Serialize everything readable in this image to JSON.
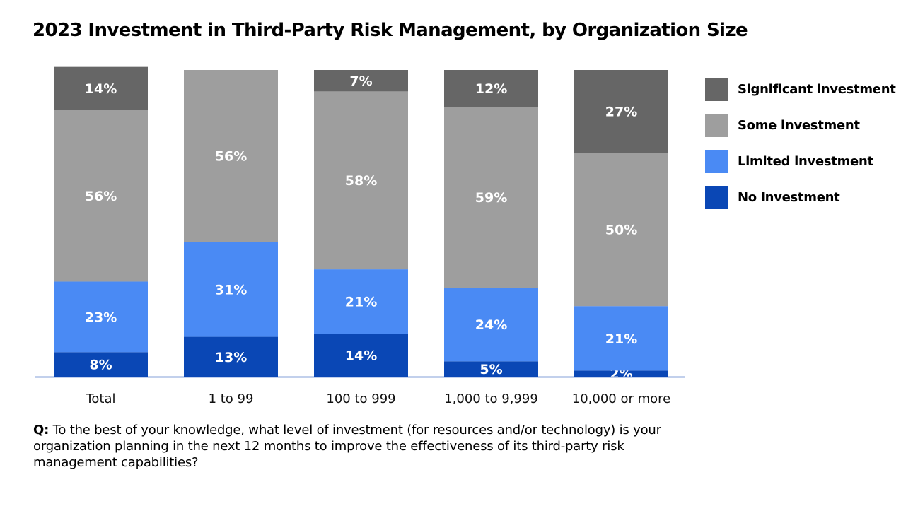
{
  "title": "2023 Investment in Third-Party Risk Management, by Organization Size",
  "question": {
    "prefix": "Q:",
    "text": "To the best of your knowledge, what level of investment (for resources and/or technology) is your organization planning in the next 12 months to improve the effectiveness of its third-party risk management capabilities?"
  },
  "chart_data": {
    "type": "bar",
    "stacked": true,
    "title": "2023 Investment in Third-Party Risk Management, by Organization Size",
    "xlabel": "",
    "ylabel": "",
    "ylim": [
      0,
      100
    ],
    "grid": false,
    "legend_position": "right",
    "categories": [
      "Total",
      "1 to 99",
      "100 to 999",
      "1,000 to 9,999",
      "10,000 or more"
    ],
    "series": [
      {
        "name": "No investment",
        "color": "#0a47b5",
        "values": [
          8,
          13,
          14,
          5,
          2
        ]
      },
      {
        "name": "Limited investment",
        "color": "#4a8af4",
        "values": [
          23,
          31,
          21,
          24,
          21
        ]
      },
      {
        "name": "Some investment",
        "color": "#9e9e9e",
        "values": [
          56,
          56,
          58,
          59,
          50
        ]
      },
      {
        "name": "Significant investment",
        "color": "#666666",
        "values": [
          14,
          0,
          7,
          12,
          27
        ]
      }
    ]
  }
}
